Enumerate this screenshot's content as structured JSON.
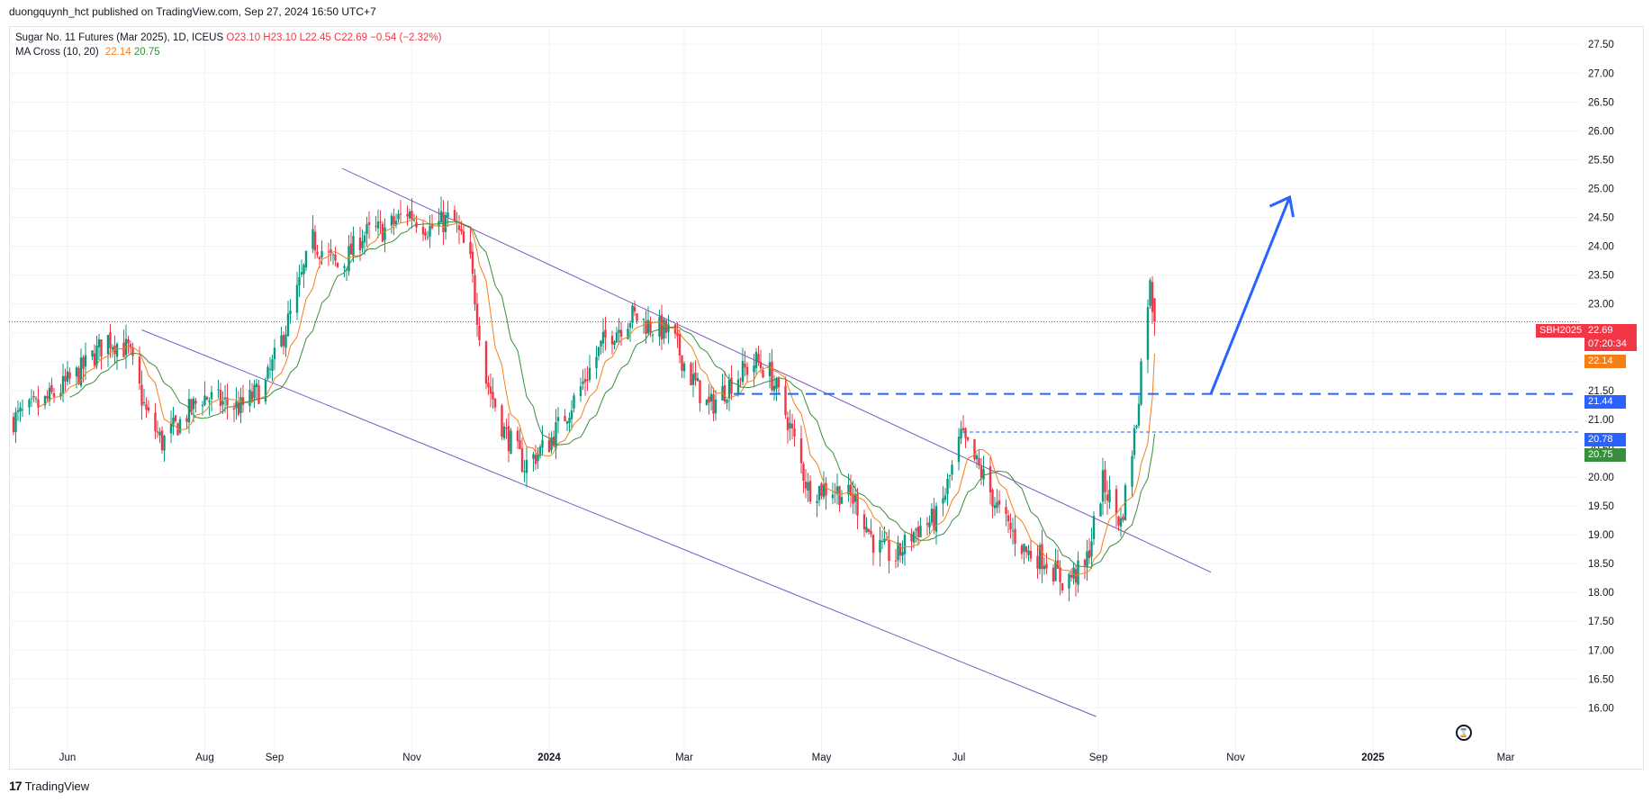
{
  "publisher_line": "duongquynh_hct published on TradingView.com, Sep 27, 2024 16:50 UTC+7",
  "legend": {
    "symbol": "Sugar No. 11 Futures (Mar 2025), 1D, ICEUS",
    "ohlc": "O23.10 H23.10 L22.45 C22.69 −0.54 (−2.32%)",
    "ma_label": "MA Cross (10, 20)",
    "ma_fast": "22.14",
    "ma_slow": "20.75"
  },
  "footer_brand": "TradingView",
  "price_tags": {
    "symbol": "SBH2025",
    "last": "22.69",
    "countdown": "07:20:34",
    "ma_fast": "22.14",
    "level_upper": "21.44",
    "level_lower": "20.78",
    "ma_slow": "20.75"
  },
  "colors": {
    "up": "#089981",
    "down": "#f23645",
    "ma_fast": "#f57f17",
    "ma_slow": "#388e3c",
    "channel": "#7e57c2",
    "level_line": "#2962ff",
    "arrow": "#2962ff",
    "last_price": "#f23645"
  },
  "chart_data": {
    "type": "candlestick",
    "symbol": "Sugar No. 11 Futures (Mar 2025)",
    "timeframe": "1D",
    "y_ticks": [
      "16.00",
      "16.50",
      "17.00",
      "17.50",
      "18.00",
      "18.50",
      "19.00",
      "19.50",
      "20.00",
      "20.50",
      "21.00",
      "21.50",
      "22.00",
      "22.50",
      "23.00",
      "23.50",
      "24.00",
      "24.50",
      "25.00",
      "25.50",
      "26.00",
      "26.50",
      "27.00",
      "27.50"
    ],
    "ylim": [
      15.6,
      27.8
    ],
    "x_ticks": [
      "Jun",
      "Aug",
      "Sep",
      "Nov",
      "2024",
      "Mar",
      "May",
      "Jul",
      "Sep",
      "Nov",
      "2025",
      "Mar"
    ],
    "x_tick_dates": [
      "2023-06-01",
      "2023-08-01",
      "2023-09-01",
      "2023-11-01",
      "2024-01-01",
      "2024-03-01",
      "2024-05-01",
      "2024-07-01",
      "2024-09-01",
      "2024-11-01",
      "2025-01-01",
      "2025-03-01"
    ],
    "x_range": [
      "2023-05-06",
      "2025-04-03"
    ],
    "price_path": [
      [
        "2023-05-08",
        21.0
      ],
      [
        "2023-05-22",
        21.3
      ],
      [
        "2023-06-06",
        21.8
      ],
      [
        "2023-06-19",
        22.4
      ],
      [
        "2023-06-28",
        22.2
      ],
      [
        "2023-07-06",
        21.1
      ],
      [
        "2023-07-13",
        20.6
      ],
      [
        "2023-07-22",
        21.0
      ],
      [
        "2023-07-31",
        21.4
      ],
      [
        "2023-08-08",
        21.3
      ],
      [
        "2023-08-17",
        21.2
      ],
      [
        "2023-08-28",
        21.6
      ],
      [
        "2023-09-08",
        22.8
      ],
      [
        "2023-09-18",
        24.1
      ],
      [
        "2023-09-30",
        23.6
      ],
      [
        "2023-10-10",
        24.2
      ],
      [
        "2023-10-21",
        24.3
      ],
      [
        "2023-10-30",
        24.6
      ],
      [
        "2023-11-09",
        24.3
      ],
      [
        "2023-11-19",
        24.5
      ],
      [
        "2023-11-27",
        23.7
      ],
      [
        "2023-12-04",
        21.7
      ],
      [
        "2023-12-12",
        20.8
      ],
      [
        "2023-12-21",
        20.2
      ],
      [
        "2024-01-01",
        20.6
      ],
      [
        "2024-01-13",
        21.4
      ],
      [
        "2024-01-26",
        22.4
      ],
      [
        "2024-02-07",
        22.8
      ],
      [
        "2024-02-16",
        22.6
      ],
      [
        "2024-02-24",
        22.5
      ],
      [
        "2024-03-03",
        21.8
      ],
      [
        "2024-03-12",
        21.2
      ],
      [
        "2024-03-23",
        21.7
      ],
      [
        "2024-04-02",
        22.0
      ],
      [
        "2024-04-08",
        21.8
      ],
      [
        "2024-04-16",
        21.0
      ],
      [
        "2024-04-25",
        19.8
      ],
      [
        "2024-05-06",
        19.8
      ],
      [
        "2024-05-16",
        19.6
      ],
      [
        "2024-05-25",
        18.8
      ],
      [
        "2024-06-03",
        18.6
      ],
      [
        "2024-06-12",
        19.1
      ],
      [
        "2024-06-22",
        19.3
      ],
      [
        "2024-07-02",
        20.7
      ],
      [
        "2024-07-12",
        20.0
      ],
      [
        "2024-07-20",
        19.3
      ],
      [
        "2024-07-31",
        18.7
      ],
      [
        "2024-08-08",
        18.6
      ],
      [
        "2024-08-16",
        18.2
      ],
      [
        "2024-08-26",
        18.4
      ],
      [
        "2024-09-03",
        19.9
      ],
      [
        "2024-09-11",
        19.2
      ],
      [
        "2024-09-18",
        21.0
      ],
      [
        "2024-09-22",
        22.9
      ],
      [
        "2024-09-24",
        23.3
      ],
      [
        "2024-09-26",
        22.69
      ]
    ],
    "last_close": 22.69,
    "ma_fast_last": 22.14,
    "ma_slow_last": 20.75,
    "horizontal_levels": [
      21.44,
      20.78
    ],
    "annotations": [
      "descending channel",
      "upward arrow projection"
    ]
  }
}
